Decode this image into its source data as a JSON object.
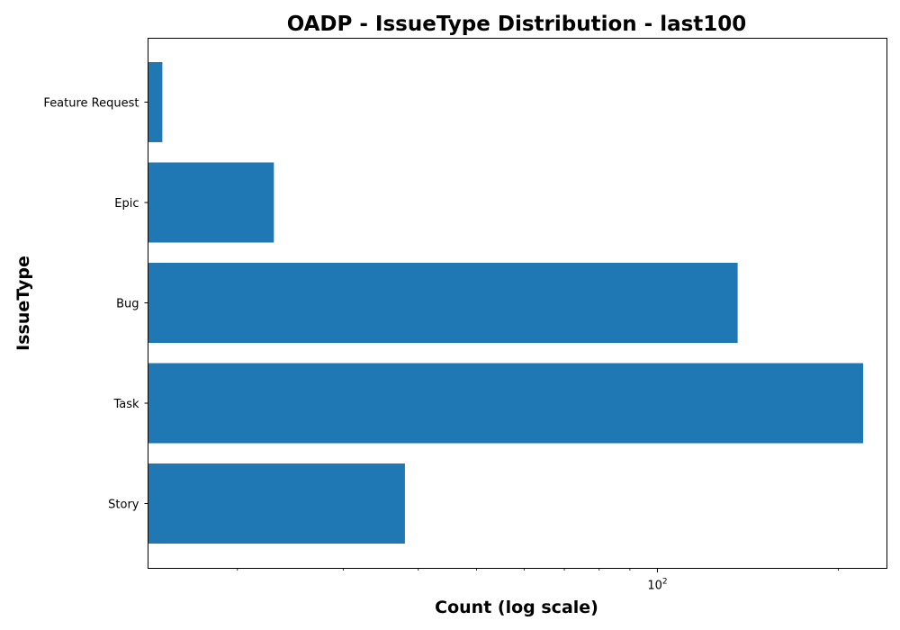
{
  "chart_data": {
    "type": "bar",
    "orientation": "horizontal",
    "title": "OADP - IssueType Distribution - last100",
    "xlabel": "Count (log scale)",
    "ylabel": "IssueType",
    "x_scale": "log",
    "xlim": [
      14.2,
      241
    ],
    "x_ticks": [
      {
        "value": 100,
        "label": "10",
        "exponent": "2"
      }
    ],
    "x_minor_ticks": [
      20,
      30,
      40,
      50,
      60,
      70,
      80,
      90,
      200
    ],
    "categories": [
      "Story",
      "Task",
      "Bug",
      "Epic",
      "Feature Request"
    ],
    "values": [
      38,
      220,
      136,
      23,
      15
    ],
    "bar_color": "#1f77b4",
    "grid": false,
    "legend": "none"
  }
}
